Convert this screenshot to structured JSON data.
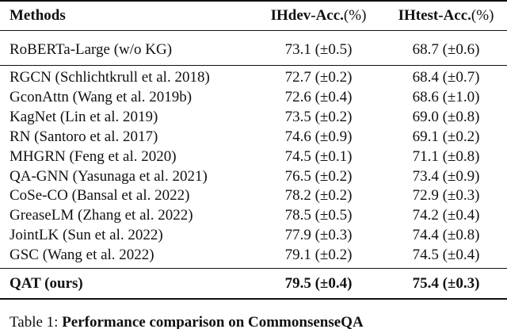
{
  "table": {
    "header": {
      "method": "Methods",
      "dev": {
        "text": "IHdev-Acc.",
        "unit": "(%)"
      },
      "test": {
        "text": "IHtest-Acc.",
        "unit": "(%)"
      }
    },
    "baseline": [
      {
        "method": "RoBERTa-Large (w/o KG)",
        "dev": "73.1 (±0.5)",
        "test": "68.7 (±0.6)"
      }
    ],
    "prior": [
      {
        "method": "RGCN (Schlichtkrull et al. 2018)",
        "dev": "72.7 (±0.2)",
        "test": "68.4 (±0.7)"
      },
      {
        "method": "GconAttn (Wang et al. 2019b)",
        "dev": "72.6 (±0.4)",
        "test": "68.6 (±1.0)"
      },
      {
        "method": "KagNet (Lin et al. 2019)",
        "dev": "73.5 (±0.2)",
        "test": "69.0 (±0.8)"
      },
      {
        "method": "RN (Santoro et al. 2017)",
        "dev": "74.6 (±0.9)",
        "test": "69.1 (±0.2)"
      },
      {
        "method": "MHGRN (Feng et al. 2020)",
        "dev": "74.5 (±0.1)",
        "test": "71.1 (±0.8)"
      },
      {
        "method": "QA-GNN (Yasunaga et al. 2021)",
        "dev": "76.5 (±0.2)",
        "test": "73.4 (±0.9)"
      },
      {
        "method": "CoSe-CO (Bansal et al. 2022)",
        "dev": "78.2 (±0.2)",
        "test": "72.9 (±0.3)"
      },
      {
        "method": "GreaseLM (Zhang et al. 2022)",
        "dev": "78.5 (±0.5)",
        "test": "74.2 (±0.4)"
      },
      {
        "method": "JointLK (Sun et al. 2022)",
        "dev": "77.9 (±0.3)",
        "test": "74.4 (±0.8)"
      },
      {
        "method": "GSC (Wang et al. 2022)",
        "dev": "79.1 (±0.2)",
        "test": "74.5 (±0.4)"
      }
    ],
    "ours": [
      {
        "method": "QAT (ours)",
        "dev": "79.5 (±0.4)",
        "test": "75.4 (±0.3)"
      }
    ]
  },
  "caption": {
    "label": "Table 1:",
    "title": "Performance comparison on CommonsenseQA"
  }
}
